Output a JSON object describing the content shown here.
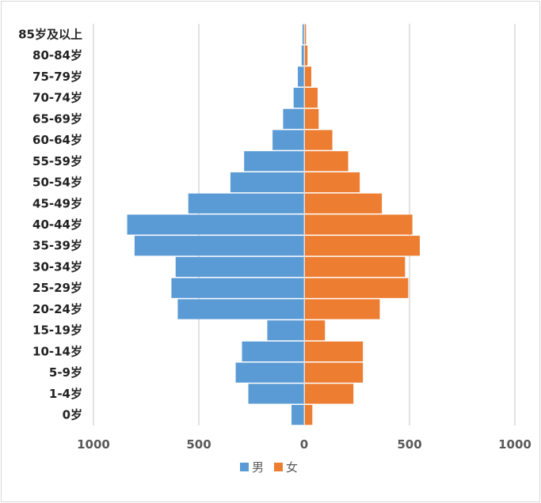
{
  "chart_data": {
    "type": "bar",
    "orientation": "horizontal",
    "categories": [
      "0岁",
      "1-4岁",
      "5-9岁",
      "10-14岁",
      "15-19岁",
      "20-24岁",
      "25-29岁",
      "30-34岁",
      "35-39岁",
      "40-44岁",
      "45-49岁",
      "50-54岁",
      "55-59岁",
      "60-64岁",
      "65-69岁",
      "70-74岁",
      "75-79岁",
      "80-84岁",
      "85岁及以上"
    ],
    "series": [
      {
        "name": "男",
        "color": "#5b9bd5",
        "values": [
          60,
          265,
          325,
          295,
          175,
          600,
          630,
          610,
          805,
          840,
          550,
          350,
          285,
          150,
          100,
          50,
          30,
          12,
          8
        ]
      },
      {
        "name": "女",
        "color": "#ed7d31",
        "values": [
          35,
          230,
          275,
          275,
          95,
          355,
          490,
          475,
          545,
          510,
          365,
          260,
          205,
          130,
          65,
          60,
          30,
          12,
          5
        ]
      }
    ],
    "x_axis": {
      "ticks": [
        -1000,
        -500,
        0,
        500,
        1000
      ],
      "tick_labels": [
        "1000",
        "500",
        "0",
        "500",
        "1000"
      ],
      "range": [
        -1000,
        1000
      ]
    },
    "grid": true,
    "legend": "bottom"
  }
}
